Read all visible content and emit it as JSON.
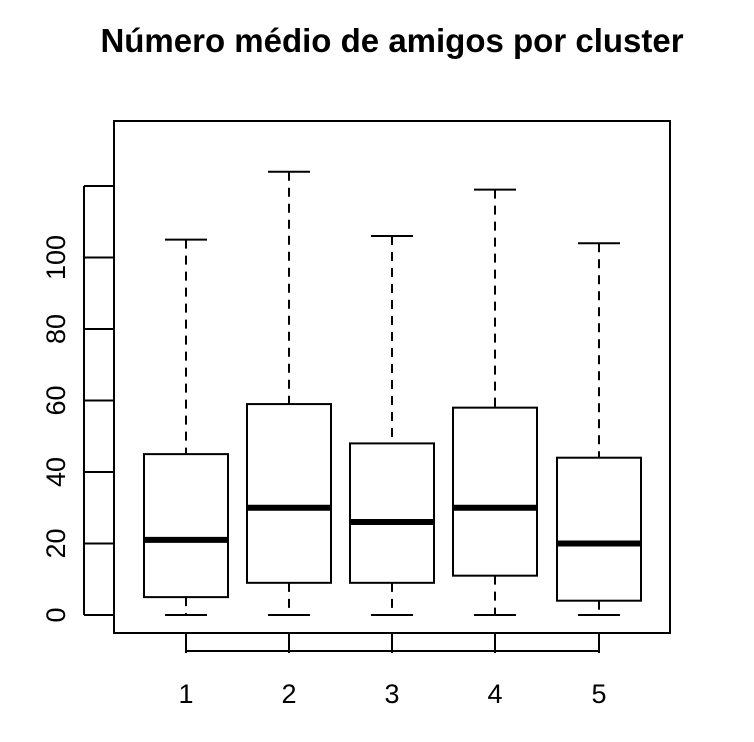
{
  "chart_data": {
    "type": "boxplot",
    "title": "Número médio de amigos por cluster",
    "xlabel": "",
    "ylabel": "",
    "categories": [
      "1",
      "2",
      "3",
      "4",
      "5"
    ],
    "boxes": [
      {
        "min": 0,
        "q1": 5,
        "median": 21,
        "q3": 45,
        "max": 105
      },
      {
        "min": 0,
        "q1": 9,
        "median": 30,
        "q3": 59,
        "max": 124
      },
      {
        "min": 0,
        "q1": 9,
        "median": 26,
        "q3": 48,
        "max": 106
      },
      {
        "min": 0,
        "q1": 11,
        "median": 30,
        "q3": 58,
        "max": 119
      },
      {
        "min": 0,
        "q1": 4,
        "median": 20,
        "q3": 44,
        "max": 104
      }
    ],
    "yticks": [
      0,
      20,
      40,
      60,
      80,
      100,
      120
    ],
    "ytick_labels": [
      "0",
      "20",
      "40",
      "60",
      "80",
      "100",
      ""
    ],
    "ylim": [
      -5,
      138
    ],
    "grid": false,
    "legend": "none"
  }
}
